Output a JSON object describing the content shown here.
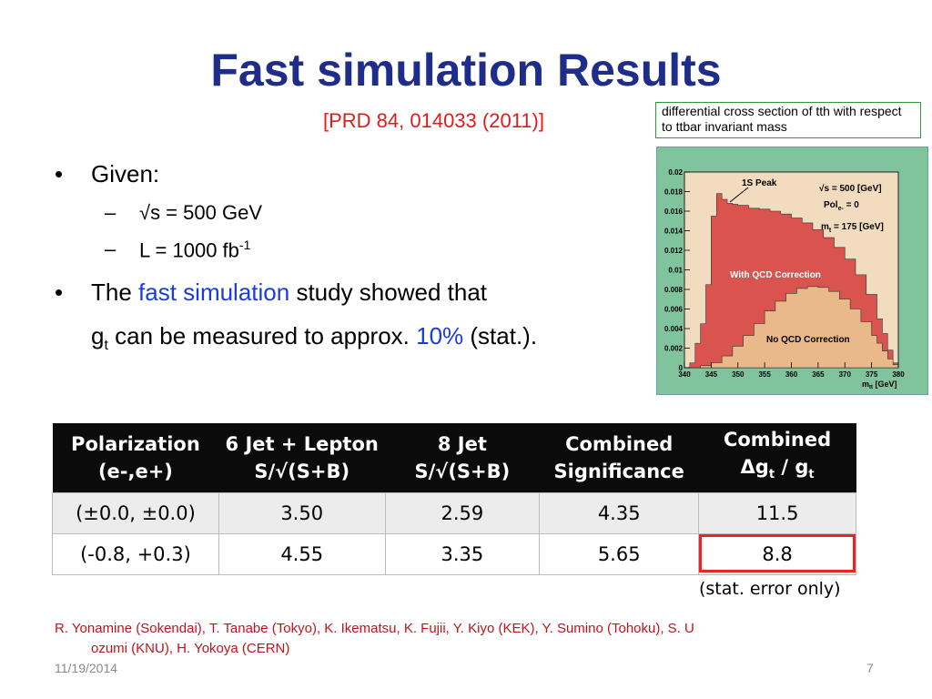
{
  "title": "Fast simulation Results",
  "reference": "[PRD 84, 014033 (2011)]",
  "caption": "differential cross section of tth with respect to ttbar invariant mass",
  "bullets": {
    "b1": "Given:",
    "s1": "√s  =  500  GeV",
    "s2_pre": "L = 1000  fb",
    "s2_sup": "-1",
    "b2_a": "The ",
    "b2_b": "fast simulation",
    "b2_c": " study showed that",
    "b3_a": "g",
    "b3_sub": "t",
    "b3_b": " can be measured to approx. ",
    "b3_c": "10%",
    "b3_d": " (stat.)."
  },
  "chart_data": {
    "type": "area",
    "xlabel_main": "m",
    "xlabel_sub": "tt",
    "xlabel_unit": " [GeV]",
    "xlim": [
      340,
      380
    ],
    "ylim": [
      0,
      0.02
    ],
    "x_ticks": [
      "340",
      "345",
      "350",
      "355",
      "360",
      "365",
      "370",
      "375",
      "380"
    ],
    "y_ticks": [
      "0",
      "0.002",
      "0.004",
      "0.006",
      "0.008",
      "0.01",
      "0.012",
      "0.014",
      "0.016",
      "0.018",
      "0.02"
    ],
    "legend": {
      "l1": "√s = 500 [GeV]",
      "l2_pre": "Pol",
      "l2_sub": "e-",
      "l2_post": " = 0",
      "l3_pre": "m",
      "l3_sub": "t",
      "l3_post": " = 175 [GeV]"
    },
    "annotations": {
      "peak": "1S Peak",
      "qcd": "With QCD Correction",
      "noqcd": "No QCD Correction"
    },
    "series": [
      {
        "name": "With QCD Correction",
        "color": "#d9534f",
        "x": [
          341,
          342,
          343,
          344,
          345,
          346,
          347,
          348,
          349,
          350,
          352,
          354,
          356,
          358,
          360,
          362,
          364,
          366,
          368,
          370,
          372,
          374,
          376,
          377,
          378,
          379
        ],
        "y": [
          0.0005,
          0.0025,
          0.0045,
          0.0085,
          0.0155,
          0.0178,
          0.0172,
          0.0168,
          0.0167,
          0.0166,
          0.0163,
          0.0162,
          0.016,
          0.0157,
          0.0153,
          0.0148,
          0.0141,
          0.0133,
          0.0123,
          0.0111,
          0.0095,
          0.0075,
          0.005,
          0.0035,
          0.0018,
          0.0005
        ]
      },
      {
        "name": "No QCD Correction",
        "color": "#e9b98a",
        "x": [
          341,
          343,
          345,
          347,
          349,
          351,
          353,
          355,
          357,
          359,
          361,
          363,
          365,
          367,
          369,
          371,
          373,
          375,
          376,
          377,
          378,
          379
        ],
        "y": [
          0.0,
          0.0002,
          0.0005,
          0.0012,
          0.0022,
          0.0033,
          0.0045,
          0.0058,
          0.0068,
          0.0076,
          0.0081,
          0.0083,
          0.0082,
          0.0078,
          0.007,
          0.006,
          0.0047,
          0.0033,
          0.0025,
          0.0017,
          0.0009,
          0.0003
        ]
      }
    ]
  },
  "table": {
    "headers": [
      [
        "Polarization",
        "(e-,e+)"
      ],
      [
        "6 Jet + Lepton",
        "S/√(S+B)"
      ],
      [
        "8 Jet",
        "S/√(S+B)"
      ],
      [
        "Combined",
        "Significance"
      ],
      [
        "Combined",
        "Δg",
        "t",
        " / g",
        "t"
      ]
    ],
    "rows": [
      [
        "(±0.0, ±0.0)",
        "3.50",
        "2.59",
        "4.35",
        "11.5"
      ],
      [
        "(-0.8, +0.3)",
        "4.55",
        "3.35",
        "5.65",
        "8.8"
      ]
    ],
    "note": "(stat. error only)",
    "highlight_color": "#e22222"
  },
  "authors": "R.  Yonamine  (Sokendai),  T.  Tanabe  (Tokyo),  K.  Ikematsu,  K.  Fujii,   Y.  Kiyo  (KEK),  Y.  Sumino  (Tohoku),  S.  U",
  "authors2": "ozumi  (KNU),  H.  Yokoya  (CERN)",
  "footer": {
    "date": "11/19/2014",
    "page": "7"
  }
}
